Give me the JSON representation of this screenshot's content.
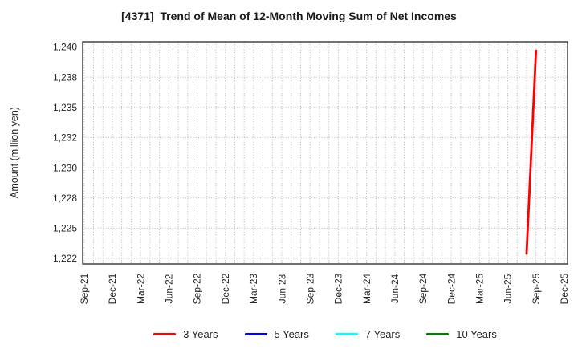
{
  "chart_data": {
    "type": "line",
    "title": "[4371]  Trend of Mean of 12-Month Moving Sum of Net Incomes",
    "ylabel": "Amount (million yen)",
    "xlabel": "",
    "x_tick_labels": [
      "Sep-21",
      "Dec-21",
      "Mar-22",
      "Jun-22",
      "Sep-22",
      "Dec-22",
      "Mar-23",
      "Jun-23",
      "Sep-23",
      "Dec-23",
      "Mar-24",
      "Jun-24",
      "Sep-24",
      "Dec-24",
      "Mar-25",
      "Jun-25",
      "Sep-25",
      "Dec-25"
    ],
    "x_tick_interval_months": 3,
    "x_total_months": 51,
    "y_ticks": [
      {
        "value": 1240.0,
        "label": "1,240"
      },
      {
        "value": 1237.5,
        "label": "1,238"
      },
      {
        "value": 1235.0,
        "label": "1,235"
      },
      {
        "value": 1232.5,
        "label": "1,232"
      },
      {
        "value": 1230.0,
        "label": "1,230"
      },
      {
        "value": 1227.5,
        "label": "1,228"
      },
      {
        "value": 1225.0,
        "label": "1,225"
      },
      {
        "value": 1222.5,
        "label": "1,222"
      }
    ],
    "ylim": [
      1222.0,
      1240.4
    ],
    "grid": {
      "horizontal": true,
      "vertical_monthly": true,
      "style": "dotted",
      "color": "#b3b3b3"
    },
    "legend_position": "bottom",
    "series": [
      {
        "name": "3 Years",
        "color": "#ff0000",
        "points": [
          {
            "x": "Aug-25",
            "month_index": 47,
            "y": 1222.9
          },
          {
            "x": "Sep-25",
            "month_index": 48,
            "y": 1239.7
          }
        ]
      },
      {
        "name": "5 Years",
        "color": "#0000ff",
        "points": []
      },
      {
        "name": "7 Years",
        "color": "#00ffff",
        "points": []
      },
      {
        "name": "10 Years",
        "color": "#008000",
        "points": []
      }
    ]
  },
  "legend": {
    "items": [
      {
        "label": "3 Years",
        "color": "#ff0000"
      },
      {
        "label": "5 Years",
        "color": "#0000ff"
      },
      {
        "label": "7 Years",
        "color": "#00ffff"
      },
      {
        "label": "10 Years",
        "color": "#008000"
      }
    ]
  },
  "colors": {
    "background": "#ffffff",
    "plot_border": "#262626",
    "grid": "#b3b3b3",
    "text": "#262626"
  }
}
